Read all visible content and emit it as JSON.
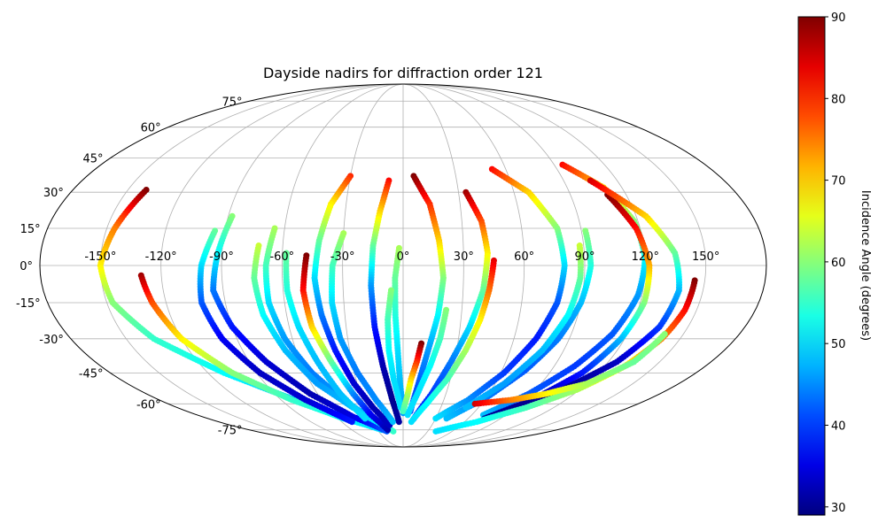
{
  "chart_data": {
    "type": "scatter",
    "projection": "mollweide",
    "title": "Dayside nadirs for diffraction order 121",
    "xlabel": "",
    "ylabel": "",
    "grid": true,
    "lon_tick_labels": [
      "-150°",
      "-120°",
      "-90°",
      "-60°",
      "-30°",
      "0°",
      "30°",
      "60°",
      "90°",
      "120°",
      "150°"
    ],
    "lon_ticks": [
      -150,
      -120,
      -90,
      -60,
      -30,
      0,
      30,
      60,
      90,
      120,
      150
    ],
    "lat_tick_labels": [
      "-75°",
      "-60°",
      "-45°",
      "-30°",
      "-15°",
      "0°",
      "15°",
      "30°",
      "45°",
      "60°",
      "75°"
    ],
    "lat_ticks": [
      -75,
      -60,
      -45,
      -30,
      -15,
      0,
      15,
      30,
      45,
      60,
      75
    ],
    "colorbar": {
      "label": "Incidence Angle (degrees)",
      "colormap": "jet",
      "range": [
        29,
        90
      ],
      "tick_labels": [
        "30",
        "40",
        "50",
        "60",
        "70",
        "80",
        "90"
      ],
      "ticks": [
        30,
        40,
        50,
        60,
        70,
        80,
        90
      ]
    },
    "tracks": [
      {
        "points": [
          [
            -140,
            31,
            90
          ],
          [
            -146,
            15,
            75
          ],
          [
            -150,
            0,
            68
          ],
          [
            -147,
            -15,
            60
          ],
          [
            -135,
            -30,
            55
          ],
          [
            -110,
            -45,
            52
          ],
          [
            -80,
            -58,
            48
          ],
          [
            -50,
            -68,
            45
          ],
          [
            -20,
            -74,
            42
          ]
        ]
      },
      {
        "points": [
          [
            -130,
            -4,
            88
          ],
          [
            -127,
            -15,
            78
          ],
          [
            -120,
            -30,
            68
          ],
          [
            -105,
            -45,
            60
          ],
          [
            -82,
            -58,
            55
          ],
          [
            -55,
            -68,
            52
          ],
          [
            -25,
            -75,
            50
          ]
        ]
      },
      {
        "points": [
          [
            -88,
            20,
            60
          ],
          [
            -92,
            5,
            52
          ],
          [
            -95,
            -10,
            44
          ],
          [
            -90,
            -25,
            38
          ],
          [
            -80,
            -40,
            34
          ],
          [
            -65,
            -55,
            32
          ],
          [
            -45,
            -67,
            35
          ],
          [
            -20,
            -76,
            42
          ]
        ]
      },
      {
        "points": [
          [
            -95,
            14,
            58
          ],
          [
            -100,
            0,
            50
          ],
          [
            -102,
            -15,
            42
          ],
          [
            -98,
            -30,
            36
          ],
          [
            -88,
            -45,
            33
          ],
          [
            -72,
            -58,
            34
          ],
          [
            -50,
            -70,
            38
          ]
        ]
      },
      {
        "points": [
          [
            -65,
            15,
            62
          ],
          [
            -68,
            0,
            56
          ],
          [
            -68,
            -15,
            50
          ],
          [
            -64,
            -30,
            46
          ],
          [
            -56,
            -45,
            44
          ],
          [
            -44,
            -58,
            46
          ],
          [
            -30,
            -68,
            50
          ],
          [
            -12,
            -76,
            55
          ]
        ]
      },
      {
        "points": [
          [
            -72,
            8,
            64
          ],
          [
            -74,
            -5,
            58
          ],
          [
            -72,
            -20,
            52
          ],
          [
            -66,
            -35,
            48
          ],
          [
            -56,
            -50,
            46
          ],
          [
            -40,
            -62,
            48
          ]
        ]
      },
      {
        "points": [
          [
            -58,
            5,
            58
          ],
          [
            -58,
            -10,
            54
          ],
          [
            -55,
            -25,
            50
          ],
          [
            -50,
            -40,
            48
          ],
          [
            -44,
            -55,
            48
          ],
          [
            -35,
            -68,
            50
          ]
        ]
      },
      {
        "points": [
          [
            -48,
            4,
            90
          ],
          [
            -50,
            -10,
            82
          ],
          [
            -48,
            -25,
            70
          ],
          [
            -42,
            -40,
            58
          ],
          [
            -35,
            -55,
            45
          ],
          [
            -28,
            -66,
            36
          ],
          [
            -18,
            -75,
            32
          ]
        ]
      },
      {
        "points": [
          [
            -30,
            37,
            80
          ],
          [
            -38,
            25,
            68
          ],
          [
            -42,
            10,
            58
          ],
          [
            -44,
            -5,
            50
          ],
          [
            -42,
            -20,
            44
          ],
          [
            -38,
            -35,
            38
          ],
          [
            -32,
            -50,
            34
          ],
          [
            -24,
            -62,
            32
          ],
          [
            -14,
            -72,
            33
          ]
        ]
      },
      {
        "points": [
          [
            -30,
            13,
            62
          ],
          [
            -35,
            0,
            56
          ],
          [
            -36,
            -15,
            50
          ],
          [
            -34,
            -30,
            46
          ],
          [
            -28,
            -45,
            44
          ],
          [
            -20,
            -58,
            45
          ],
          [
            -10,
            -70,
            48
          ]
        ]
      },
      {
        "points": [
          [
            -8,
            35,
            82
          ],
          [
            -12,
            22,
            70
          ],
          [
            -15,
            8,
            58
          ],
          [
            -16,
            -8,
            46
          ],
          [
            -15,
            -25,
            38
          ],
          [
            -12,
            -42,
            32
          ],
          [
            -8,
            -58,
            30
          ],
          [
            -4,
            -70,
            31
          ]
        ]
      },
      {
        "points": [
          [
            -2,
            7,
            62
          ],
          [
            -4,
            -5,
            58
          ],
          [
            -4,
            -20,
            54
          ],
          [
            -3,
            -35,
            50
          ],
          [
            -2,
            -50,
            48
          ],
          [
            0,
            -65,
            46
          ]
        ]
      },
      {
        "points": [
          [
            -6,
            -10,
            60
          ],
          [
            -8,
            -22,
            56
          ],
          [
            -8,
            -35,
            52
          ],
          [
            -6,
            -48,
            50
          ],
          [
            -2,
            -62,
            50
          ]
        ]
      },
      {
        "points": [
          [
            6,
            37,
            90
          ],
          [
            14,
            25,
            80
          ],
          [
            18,
            10,
            70
          ],
          [
            20,
            -5,
            60
          ],
          [
            18,
            -20,
            52
          ],
          [
            14,
            -35,
            46
          ],
          [
            10,
            -50,
            42
          ],
          [
            6,
            -64,
            40
          ]
        ]
      },
      {
        "points": [
          [
            10,
            -32,
            90
          ],
          [
            8,
            -40,
            80
          ],
          [
            5,
            -48,
            70
          ],
          [
            3,
            -56,
            62
          ],
          [
            0,
            -64,
            56
          ]
        ]
      },
      {
        "points": [
          [
            34,
            30,
            88
          ],
          [
            40,
            18,
            78
          ],
          [
            42,
            5,
            68
          ],
          [
            40,
            -10,
            58
          ],
          [
            35,
            -25,
            50
          ],
          [
            28,
            -40,
            44
          ],
          [
            20,
            -55,
            40
          ],
          [
            10,
            -68,
            38
          ]
        ]
      },
      {
        "points": [
          [
            45,
            2,
            84
          ],
          [
            43,
            -10,
            76
          ],
          [
            40,
            -22,
            68
          ],
          [
            35,
            -35,
            62
          ],
          [
            28,
            -48,
            56
          ],
          [
            18,
            -60,
            52
          ],
          [
            8,
            -70,
            50
          ]
        ]
      },
      {
        "points": [
          [
            22,
            -18,
            60
          ],
          [
            20,
            -30,
            56
          ],
          [
            16,
            -42,
            52
          ],
          [
            10,
            -55,
            50
          ],
          [
            4,
            -66,
            50
          ]
        ]
      },
      {
        "points": [
          [
            52,
            40,
            82
          ],
          [
            68,
            30,
            70
          ],
          [
            78,
            15,
            60
          ],
          [
            80,
            0,
            50
          ],
          [
            78,
            -15,
            42
          ],
          [
            72,
            -30,
            38
          ],
          [
            62,
            -45,
            40
          ],
          [
            48,
            -58,
            45
          ],
          [
            30,
            -68,
            50
          ]
        ]
      },
      {
        "points": [
          [
            95,
            42,
            82
          ],
          [
            110,
            32,
            70
          ],
          [
            118,
            18,
            60
          ],
          [
            120,
            3,
            52
          ],
          [
            118,
            -12,
            46
          ],
          [
            112,
            -28,
            42
          ],
          [
            102,
            -42,
            40
          ],
          [
            88,
            -55,
            42
          ],
          [
            70,
            -66,
            48
          ]
        ]
      },
      {
        "points": [
          [
            110,
            29,
            90
          ],
          [
            118,
            15,
            82
          ],
          [
            122,
            0,
            72
          ],
          [
            122,
            -15,
            60
          ],
          [
            118,
            -30,
            48
          ],
          [
            110,
            -45,
            38
          ],
          [
            95,
            -58,
            32
          ],
          [
            75,
            -68,
            30
          ]
        ]
      },
      {
        "points": [
          [
            105,
            35,
            85
          ],
          [
            125,
            20,
            70
          ],
          [
            135,
            5,
            58
          ],
          [
            138,
            -10,
            48
          ],
          [
            135,
            -25,
            40
          ],
          [
            125,
            -40,
            33
          ],
          [
            108,
            -53,
            30
          ],
          [
            85,
            -64,
            30
          ]
        ]
      },
      {
        "points": [
          [
            145,
            -6,
            90
          ],
          [
            144,
            -18,
            82
          ],
          [
            140,
            -30,
            75
          ],
          [
            132,
            -42,
            68
          ],
          [
            118,
            -53,
            62
          ],
          [
            98,
            -62,
            56
          ],
          [
            72,
            -70,
            52
          ],
          [
            40,
            -76,
            50
          ]
        ]
      },
      {
        "points": [
          [
            92,
            14,
            60
          ],
          [
            93,
            0,
            54
          ],
          [
            90,
            -15,
            48
          ],
          [
            84,
            -30,
            44
          ],
          [
            74,
            -44,
            42
          ],
          [
            60,
            -57,
            44
          ],
          [
            40,
            -68,
            48
          ]
        ]
      },
      {
        "points": [
          [
            88,
            8,
            64
          ],
          [
            88,
            -5,
            58
          ],
          [
            85,
            -20,
            52
          ],
          [
            78,
            -35,
            48
          ],
          [
            66,
            -50,
            46
          ],
          [
            50,
            -62,
            48
          ]
        ]
      },
      {
        "points": [
          [
            55,
            -60,
            85
          ],
          [
            80,
            -58,
            75
          ],
          [
            100,
            -55,
            68
          ],
          [
            120,
            -50,
            62
          ],
          [
            135,
            -40,
            58
          ],
          [
            140,
            -28,
            60
          ]
        ]
      }
    ]
  }
}
